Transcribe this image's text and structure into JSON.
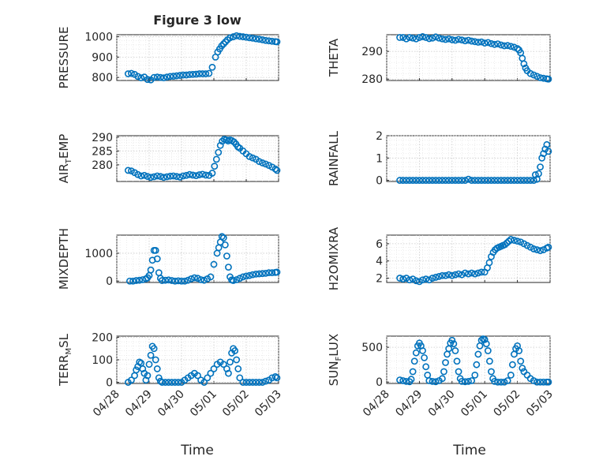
{
  "figure": {
    "title": "Figure 3 low",
    "xlabel": "Time"
  },
  "series_color": "#0072bd",
  "chart_data": [
    {
      "type": "scatter",
      "id": "pressure",
      "ylabel_main": "PRESSURE",
      "ylabel_sub": "",
      "ylabel_tail": "",
      "ylim": [
        785,
        1010
      ],
      "yticks": [
        800,
        900,
        1000
      ],
      "xlim": [
        0,
        5
      ],
      "xtick_labels": [
        "04/28",
        "04/29",
        "04/30",
        "05/01",
        "05/02",
        "05/03"
      ],
      "x": [
        0.35,
        0.45,
        0.55,
        0.65,
        0.75,
        0.85,
        0.95,
        1.05,
        1.15,
        1.25,
        1.35,
        1.45,
        1.55,
        1.65,
        1.75,
        1.85,
        1.95,
        2.05,
        2.15,
        2.25,
        2.35,
        2.45,
        2.55,
        2.65,
        2.75,
        2.85,
        2.95,
        3.05,
        3.12,
        3.18,
        3.24,
        3.3,
        3.36,
        3.42,
        3.5,
        3.6,
        3.7,
        3.8,
        3.9,
        4.0,
        4.1,
        4.2,
        4.3,
        4.4,
        4.5,
        4.6,
        4.7,
        4.8,
        4.9,
        4.95
      ],
      "y": [
        818,
        820,
        815,
        805,
        798,
        802,
        790,
        788,
        800,
        802,
        800,
        798,
        802,
        805,
        806,
        808,
        810,
        812,
        812,
        814,
        815,
        816,
        818,
        818,
        818,
        820,
        850,
        900,
        925,
        940,
        955,
        965,
        975,
        985,
        995,
        1000,
        1005,
        1002,
        1000,
        998,
        995,
        993,
        990,
        988,
        985,
        982,
        980,
        978,
        976,
        975
      ]
    },
    {
      "type": "scatter",
      "id": "theta",
      "ylabel_main": "THETA",
      "ylabel_sub": "",
      "ylabel_tail": "",
      "ylim": [
        279.5,
        296
      ],
      "yticks": [
        280,
        290
      ],
      "xlim": [
        0,
        5
      ],
      "xtick_labels": [
        "04/28",
        "04/29",
        "04/30",
        "05/01",
        "05/02",
        "05/03"
      ],
      "x": [
        0.4,
        0.5,
        0.6,
        0.7,
        0.8,
        0.9,
        1.0,
        1.1,
        1.2,
        1.3,
        1.4,
        1.5,
        1.6,
        1.7,
        1.8,
        1.9,
        2.0,
        2.1,
        2.2,
        2.3,
        2.4,
        2.5,
        2.6,
        2.7,
        2.8,
        2.9,
        3.0,
        3.1,
        3.2,
        3.3,
        3.4,
        3.5,
        3.6,
        3.7,
        3.8,
        3.9,
        4.0,
        4.05,
        4.1,
        4.15,
        4.2,
        4.25,
        4.3,
        4.4,
        4.5,
        4.6,
        4.7,
        4.8,
        4.9,
        4.95
      ],
      "y": [
        295,
        295,
        294.5,
        295,
        294.8,
        294.5,
        295,
        295.3,
        295,
        294.6,
        294.8,
        295.2,
        294.8,
        294.5,
        294.3,
        294.5,
        294.2,
        294,
        294.3,
        294.1,
        293.8,
        294,
        293.7,
        293.5,
        293.3,
        293.4,
        293,
        293.2,
        292.8,
        292.5,
        292.7,
        292.3,
        292,
        292.1,
        291.8,
        291.5,
        291,
        290.5,
        289.5,
        287.5,
        285.5,
        284,
        283,
        282,
        281.5,
        281,
        280.5,
        280.3,
        280.1,
        280
      ]
    },
    {
      "type": "scatter",
      "id": "air-temp",
      "ylabel_main": "AIR",
      "ylabel_sub": "T",
      "ylabel_tail": "EMP",
      "ylim": [
        274,
        290.5
      ],
      "yticks": [
        280,
        285,
        290
      ],
      "xlim": [
        0,
        5
      ],
      "xtick_labels": [
        "04/28",
        "04/29",
        "04/30",
        "05/01",
        "05/02",
        "05/03"
      ],
      "x": [
        0.35,
        0.45,
        0.55,
        0.65,
        0.75,
        0.85,
        0.95,
        1.05,
        1.15,
        1.25,
        1.35,
        1.45,
        1.55,
        1.65,
        1.75,
        1.85,
        1.95,
        2.05,
        2.15,
        2.25,
        2.35,
        2.45,
        2.55,
        2.65,
        2.75,
        2.85,
        2.95,
        3.02,
        3.08,
        3.14,
        3.2,
        3.26,
        3.32,
        3.38,
        3.44,
        3.5,
        3.56,
        3.62,
        3.68,
        3.74,
        3.8,
        3.9,
        4.0,
        4.1,
        4.2,
        4.3,
        4.4,
        4.5,
        4.6,
        4.7,
        4.8,
        4.9,
        4.95
      ],
      "y": [
        278,
        277.8,
        277.2,
        276.5,
        276,
        276.2,
        275.8,
        275.5,
        275.7,
        276,
        275.8,
        275.5,
        275.7,
        275.9,
        276,
        275.8,
        275.6,
        276,
        276.2,
        276.5,
        276.3,
        276.1,
        276.4,
        276.6,
        276.3,
        276.2,
        277,
        279.5,
        282,
        284.5,
        287,
        288.5,
        289.2,
        289,
        288.6,
        289,
        288.7,
        288.3,
        287.5,
        286.5,
        286,
        285,
        284,
        283,
        282.5,
        282,
        281.2,
        280.7,
        280.3,
        279.8,
        279.2,
        278.5,
        278
      ]
    },
    {
      "type": "scatter",
      "id": "rainfall",
      "ylabel_main": "RAINFALL",
      "ylabel_sub": "",
      "ylabel_tail": "",
      "ylim": [
        -0.05,
        2
      ],
      "yticks": [
        0,
        1,
        2
      ],
      "xlim": [
        0,
        5
      ],
      "xtick_labels": [
        "04/28",
        "04/29",
        "04/30",
        "05/01",
        "05/02",
        "05/03"
      ],
      "x": [
        0.4,
        0.5,
        0.6,
        0.7,
        0.8,
        0.9,
        1.0,
        1.1,
        1.2,
        1.3,
        1.4,
        1.5,
        1.6,
        1.7,
        1.8,
        1.9,
        2.0,
        2.1,
        2.2,
        2.3,
        2.4,
        2.5,
        2.6,
        2.7,
        2.8,
        2.9,
        3.0,
        3.1,
        3.2,
        3.3,
        3.4,
        3.5,
        3.6,
        3.7,
        3.8,
        3.9,
        4.0,
        4.1,
        4.2,
        4.3,
        4.4,
        4.5,
        4.55,
        4.6,
        4.65,
        4.7,
        4.75,
        4.8,
        4.85,
        4.9,
        4.95
      ],
      "y": [
        0,
        0,
        0,
        0,
        0,
        0,
        0,
        0,
        0,
        0,
        0,
        0,
        0,
        0,
        0,
        0,
        0,
        0,
        0,
        0,
        0,
        0.05,
        0,
        0,
        0,
        0,
        0,
        0,
        0,
        0,
        0,
        0,
        0,
        0,
        0,
        0,
        0,
        0,
        0,
        0,
        0,
        0,
        0.25,
        0.05,
        0.3,
        0.6,
        1.0,
        1.2,
        1.4,
        1.6,
        1.3
      ]
    },
    {
      "type": "scatter",
      "id": "mixdepth",
      "ylabel_main": "MIXDEPTH",
      "ylabel_sub": "",
      "ylabel_tail": "",
      "ylim": [
        -50,
        1650
      ],
      "yticks": [
        0,
        1000
      ],
      "xlim": [
        0,
        5
      ],
      "xtick_labels": [
        "04/28",
        "04/29",
        "04/30",
        "05/01",
        "05/02",
        "05/03"
      ],
      "x": [
        0.4,
        0.5,
        0.6,
        0.7,
        0.8,
        0.9,
        0.95,
        1.0,
        1.05,
        1.1,
        1.15,
        1.2,
        1.25,
        1.3,
        1.35,
        1.4,
        1.5,
        1.6,
        1.7,
        1.8,
        1.9,
        2.0,
        2.1,
        2.2,
        2.3,
        2.4,
        2.5,
        2.6,
        2.7,
        2.8,
        2.9,
        3.0,
        3.1,
        3.15,
        3.2,
        3.25,
        3.3,
        3.35,
        3.4,
        3.45,
        3.5,
        3.55,
        3.6,
        3.7,
        3.8,
        3.9,
        4.0,
        4.1,
        4.2,
        4.3,
        4.4,
        4.5,
        4.6,
        4.7,
        4.8,
        4.9,
        4.95
      ],
      "y": [
        0,
        0,
        20,
        30,
        50,
        80,
        120,
        200,
        400,
        750,
        1100,
        1100,
        800,
        300,
        100,
        20,
        30,
        40,
        20,
        0,
        10,
        0,
        0,
        30,
        80,
        120,
        100,
        50,
        30,
        80,
        150,
        600,
        1000,
        1200,
        1400,
        1600,
        1550,
        1300,
        900,
        500,
        150,
        40,
        20,
        50,
        100,
        150,
        180,
        200,
        230,
        250,
        260,
        270,
        280,
        300,
        300,
        310,
        320
      ]
    },
    {
      "type": "scatter",
      "id": "h2omixra",
      "ylabel_main": "H2OMIXRA",
      "ylabel_sub": "",
      "ylabel_tail": "",
      "ylim": [
        1.5,
        7
      ],
      "yticks": [
        2,
        4,
        6
      ],
      "xlim": [
        0,
        5
      ],
      "xtick_labels": [
        "04/28",
        "04/29",
        "04/30",
        "05/01",
        "05/02",
        "05/03"
      ],
      "x": [
        0.4,
        0.5,
        0.6,
        0.7,
        0.8,
        0.9,
        1.0,
        1.1,
        1.2,
        1.3,
        1.4,
        1.5,
        1.6,
        1.7,
        1.8,
        1.9,
        2.0,
        2.1,
        2.2,
        2.3,
        2.4,
        2.5,
        2.6,
        2.7,
        2.8,
        2.9,
        3.0,
        3.08,
        3.14,
        3.2,
        3.26,
        3.32,
        3.38,
        3.44,
        3.5,
        3.56,
        3.62,
        3.68,
        3.74,
        3.8,
        3.9,
        4.0,
        4.1,
        4.2,
        4.3,
        4.4,
        4.5,
        4.6,
        4.7,
        4.8,
        4.9,
        4.95
      ],
      "y": [
        2.0,
        1.9,
        2.0,
        1.8,
        1.9,
        1.7,
        1.6,
        1.8,
        1.9,
        1.8,
        2.0,
        2.1,
        2.2,
        2.3,
        2.3,
        2.4,
        2.3,
        2.4,
        2.5,
        2.4,
        2.6,
        2.5,
        2.6,
        2.5,
        2.6,
        2.7,
        2.7,
        3.2,
        3.8,
        4.5,
        5.0,
        5.3,
        5.5,
        5.6,
        5.7,
        5.8,
        5.9,
        6.1,
        6.3,
        6.5,
        6.4,
        6.3,
        6.2,
        6.0,
        5.8,
        5.6,
        5.4,
        5.3,
        5.2,
        5.3,
        5.5,
        5.6
      ]
    },
    {
      "type": "scatter",
      "id": "terr-msl",
      "ylabel_main": "TERR",
      "ylabel_sub": "M",
      "ylabel_tail": "SL",
      "ylim": [
        -5,
        205
      ],
      "yticks": [
        0,
        100,
        200
      ],
      "xlim": [
        0,
        5
      ],
      "xtick_labels": [
        "04/28",
        "04/29",
        "04/30",
        "05/01",
        "05/02",
        "05/03"
      ],
      "x": [
        0.35,
        0.45,
        0.55,
        0.6,
        0.65,
        0.7,
        0.75,
        0.8,
        0.85,
        0.9,
        0.95,
        1.0,
        1.05,
        1.1,
        1.15,
        1.2,
        1.25,
        1.3,
        1.35,
        1.4,
        1.5,
        1.6,
        1.7,
        1.8,
        1.9,
        2.0,
        2.1,
        2.2,
        2.3,
        2.4,
        2.5,
        2.6,
        2.7,
        2.8,
        2.9,
        3.0,
        3.1,
        3.2,
        3.3,
        3.4,
        3.45,
        3.5,
        3.55,
        3.6,
        3.65,
        3.7,
        3.75,
        3.8,
        3.9,
        4.0,
        4.1,
        4.2,
        4.3,
        4.4,
        4.5,
        4.6,
        4.7,
        4.8,
        4.9,
        4.95
      ],
      "y": [
        0,
        10,
        30,
        55,
        70,
        90,
        85,
        60,
        40,
        10,
        30,
        80,
        120,
        160,
        150,
        100,
        60,
        20,
        5,
        0,
        0,
        0,
        0,
        0,
        0,
        0,
        10,
        20,
        30,
        40,
        30,
        10,
        0,
        20,
        40,
        60,
        80,
        90,
        80,
        60,
        40,
        90,
        130,
        150,
        140,
        100,
        60,
        20,
        0,
        0,
        0,
        0,
        0,
        0,
        0,
        5,
        10,
        20,
        25,
        20
      ]
    },
    {
      "type": "scatter",
      "id": "sun-flux",
      "ylabel_main": "SUN",
      "ylabel_sub": "F",
      "ylabel_tail": "LUX",
      "ylim": [
        -20,
        660
      ],
      "yticks": [
        0,
        500
      ],
      "xlim": [
        0,
        5
      ],
      "xtick_labels": [
        "04/28",
        "04/29",
        "04/30",
        "05/01",
        "05/02",
        "05/03"
      ],
      "x": [
        0.4,
        0.5,
        0.6,
        0.7,
        0.75,
        0.8,
        0.85,
        0.9,
        0.95,
        1.0,
        1.05,
        1.1,
        1.15,
        1.2,
        1.25,
        1.3,
        1.4,
        1.5,
        1.6,
        1.7,
        1.75,
        1.8,
        1.85,
        1.9,
        1.95,
        2.0,
        2.05,
        2.1,
        2.15,
        2.2,
        2.25,
        2.3,
        2.4,
        2.5,
        2.6,
        2.7,
        2.75,
        2.8,
        2.85,
        2.9,
        2.95,
        3.0,
        3.05,
        3.1,
        3.15,
        3.2,
        3.25,
        3.3,
        3.4,
        3.5,
        3.6,
        3.7,
        3.8,
        3.85,
        3.9,
        3.95,
        4.0,
        4.05,
        4.1,
        4.15,
        4.2,
        4.3,
        4.4,
        4.5,
        4.6,
        4.7,
        4.8,
        4.9,
        4.95
      ],
      "y": [
        30,
        20,
        10,
        5,
        40,
        150,
        300,
        420,
        520,
        560,
        520,
        450,
        350,
        220,
        100,
        20,
        10,
        5,
        20,
        50,
        150,
        280,
        400,
        480,
        560,
        600,
        550,
        450,
        300,
        150,
        50,
        10,
        5,
        10,
        20,
        100,
        250,
        400,
        520,
        600,
        620,
        610,
        550,
        450,
        300,
        150,
        50,
        10,
        0,
        0,
        0,
        20,
        100,
        250,
        400,
        480,
        520,
        450,
        300,
        200,
        150,
        100,
        50,
        20,
        0,
        0,
        0,
        0,
        0
      ]
    }
  ]
}
